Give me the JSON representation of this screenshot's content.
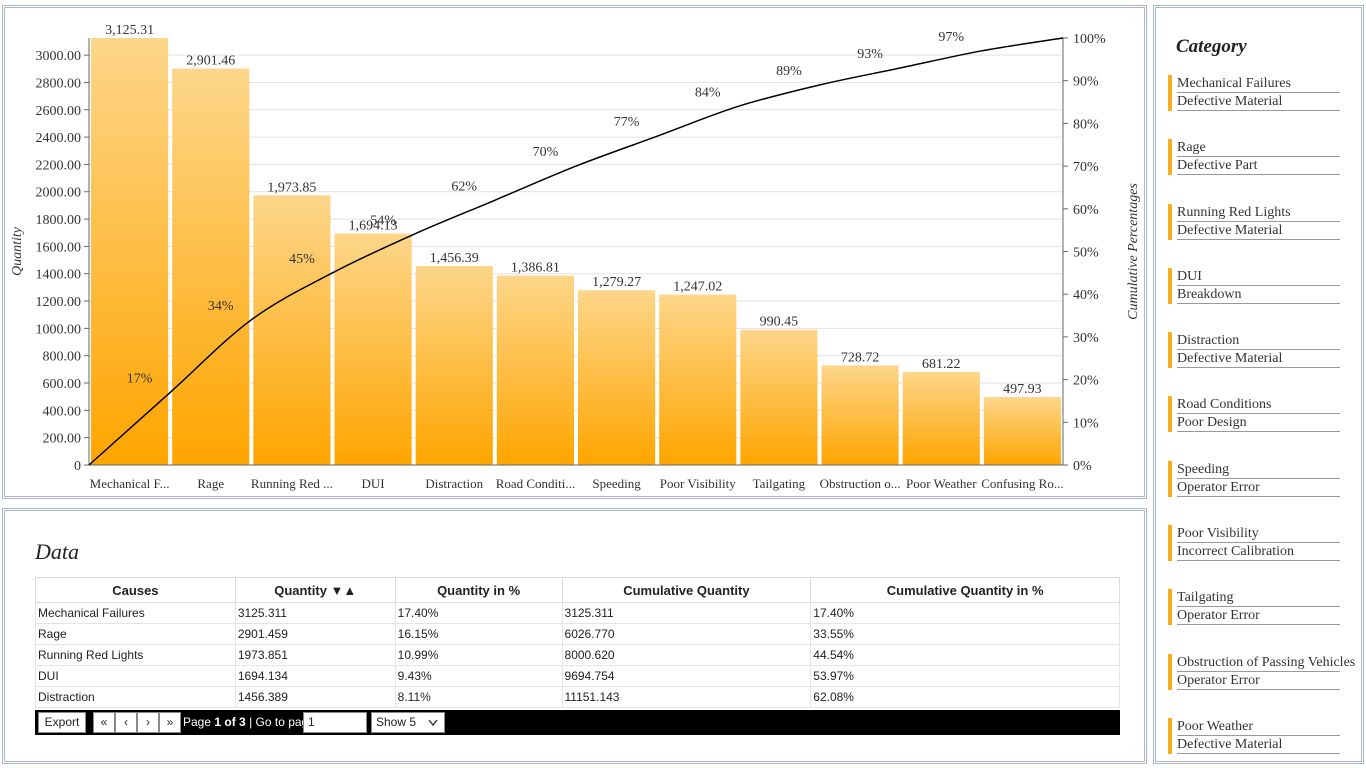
{
  "chart_data": {
    "type": "bar",
    "categories": [
      "Mechanical F...",
      "Rage",
      "Running Red ...",
      "DUI",
      "Distraction",
      "Road Conditi...",
      "Speeding",
      "Poor Visibility",
      "Tailgating",
      "Obstruction o...",
      "Poor Weather",
      "Confusing Ro..."
    ],
    "values": [
      3125.31,
      2901.46,
      1973.85,
      1694.13,
      1456.39,
      1386.81,
      1279.27,
      1247.02,
      990.45,
      728.72,
      681.22,
      497.93
    ],
    "value_labels": [
      "3,125.31",
      "2,901.46",
      "1,973.85",
      "1,694.13",
      "1,456.39",
      "1,386.81",
      "1,279.27",
      "1,247.02",
      "990.45",
      "728.72",
      "681.22",
      "497.93"
    ],
    "cumulative_percent": [
      17,
      34,
      45,
      54,
      62,
      70,
      77,
      84,
      89,
      93,
      97,
      100
    ],
    "cumulative_labels": [
      "17%",
      "34%",
      "45%",
      "54%",
      "62%",
      "70%",
      "77%",
      "84%",
      "89%",
      "93%",
      "97%",
      ""
    ],
    "ylabel": "Quantity",
    "y2label": "Cumulative Percentages",
    "ylim": [
      0,
      3125.31
    ],
    "y_ticks": [
      "0",
      "200.00",
      "400.00",
      "600.00",
      "800.00",
      "1000.00",
      "1200.00",
      "1400.00",
      "1600.00",
      "1800.00",
      "2000.00",
      "2200.00",
      "2400.00",
      "2600.00",
      "2800.00",
      "3000.00"
    ],
    "y2lim": [
      0,
      100
    ],
    "y2_ticks": [
      "0%",
      "10%",
      "20%",
      "30%",
      "40%",
      "50%",
      "60%",
      "70%",
      "80%",
      "90%",
      "100%"
    ],
    "grid": true,
    "bar_color_top": "#fdd68a",
    "bar_color_bottom": "#ffa500",
    "line_color": "#000000"
  },
  "table": {
    "title": "Data",
    "headers": [
      "Causes",
      "Quantity ▼▲",
      "Quantity in %",
      "Cumulative Quantity",
      "Cumulative Quantity in %"
    ],
    "rows": [
      [
        "Mechanical Failures",
        "3125.311",
        "17.40%",
        "3125.311",
        "17.40%"
      ],
      [
        "Rage",
        "2901.459",
        "16.15%",
        "6026.770",
        "33.55%"
      ],
      [
        "Running Red Lights",
        "1973.851",
        "10.99%",
        "8000.620",
        "44.54%"
      ],
      [
        "DUI",
        "1694.134",
        "9.43%",
        "9694.754",
        "53.97%"
      ],
      [
        "Distraction",
        "1456.389",
        "8.11%",
        "11151.143",
        "62.08%"
      ]
    ]
  },
  "pager": {
    "export_label": "Export",
    "first": "«",
    "prev": "‹",
    "next": "›",
    "last": "»",
    "page_prefix": "Page ",
    "page_current": "1",
    "page_of": " of ",
    "page_total": "3",
    "goto_label": " | Go to page:",
    "goto_value": "1",
    "show_value": "Show 5"
  },
  "legend": {
    "title": "Category",
    "color": "#f7ad1f",
    "items": [
      {
        "cause": "Mechanical Failures",
        "category": "Defective Material"
      },
      {
        "cause": "Rage",
        "category": "Defective Part"
      },
      {
        "cause": "Running Red Lights",
        "category": "Defective Material"
      },
      {
        "cause": "DUI",
        "category": "Breakdown"
      },
      {
        "cause": "Distraction",
        "category": "Defective Material"
      },
      {
        "cause": "Road Conditions",
        "category": "Poor Design"
      },
      {
        "cause": "Speeding",
        "category": "Operator Error"
      },
      {
        "cause": "Poor Visibility",
        "category": "Incorrect Calibration"
      },
      {
        "cause": "Tailgating",
        "category": "Operator Error"
      },
      {
        "cause": "Obstruction of Passing Vehicles",
        "category": "Operator Error"
      },
      {
        "cause": "Poor Weather",
        "category": "Defective Material"
      }
    ]
  }
}
